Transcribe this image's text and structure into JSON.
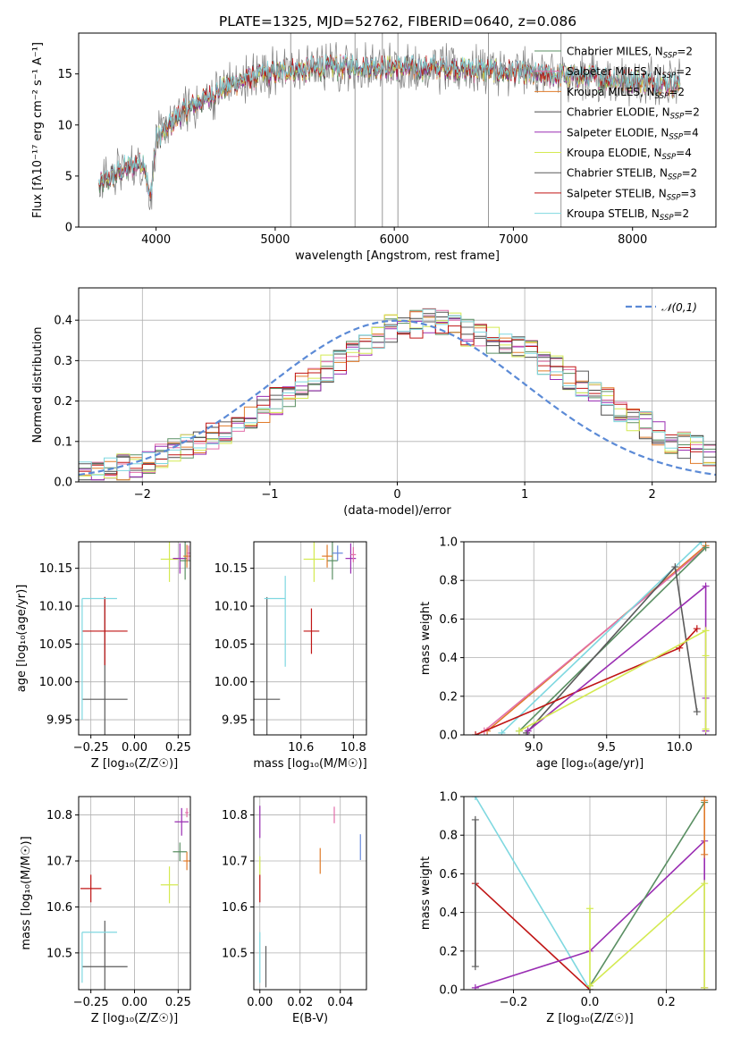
{
  "title": "PLATE=1325, MJD=52762, FIBERID=0640, z=0.086",
  "colors": {
    "Chabrier MILES": "#5a8f63",
    "Salpeter MILES": "#e26fa9",
    "Kroupa MILES": "#e07b2a",
    "Chabrier ELODIE": "#4a4a4a",
    "Salpeter ELODIE": "#9a2eb3",
    "Kroupa ELODIE": "#d4ea52",
    "Chabrier STELIB": "#5a5a5a",
    "Salpeter STELIB": "#c01515",
    "Kroupa STELIB": "#7fd8e0",
    "normal": "#5b8ad6",
    "extra": "#6688dd",
    "data": "#7f7f7f"
  },
  "chart_data": [
    {
      "id": "spectrum",
      "type": "line",
      "title": "PLATE=1325, MJD=52762, FIBERID=0640, z=0.086",
      "xlabel": "wavelength [Angstrom, rest frame]",
      "ylabel": "Flux [f_λ 10^-17 erg cm^-2 s^-1 A^-1]",
      "xlim": [
        3350,
        8700
      ],
      "ylim": [
        0,
        19
      ],
      "xticks": [
        4000,
        5000,
        6000,
        7000,
        8000
      ],
      "yticks": [
        0,
        5,
        10,
        15
      ],
      "legend_loc": "right",
      "legend": [
        "Chabrier MILES, N_SSP=2",
        "Salpeter MILES, N_SSP=2",
        "Kroupa MILES, N_SSP=2",
        "Chabrier ELODIE, N_SSP=2",
        "Salpeter ELODIE, N_SSP=4",
        "Kroupa ELODIE, N_SSP=4",
        "Chabrier STELIB, N_SSP=2",
        "Salpeter STELIB, N_SSP=3",
        "Kroupa STELIB, N_SSP=2"
      ],
      "continuum_x": [
        3500,
        3700,
        3900,
        3950,
        4000,
        4200,
        4400,
        4600,
        4800,
        5000,
        5200,
        5400,
        5600,
        5800,
        6000,
        6200,
        6400,
        6600,
        6800,
        7000,
        7200,
        7400,
        7600,
        7800,
        8000,
        8200,
        8400
      ],
      "continuum_y": [
        4.0,
        5.5,
        6.5,
        2.5,
        8.5,
        11.0,
        12.5,
        13.8,
        14.6,
        15.2,
        15.4,
        15.6,
        15.7,
        15.8,
        15.6,
        15.6,
        15.6,
        15.5,
        15.3,
        15.1,
        14.9,
        14.8,
        14.7,
        14.5,
        14.3,
        14.1,
        13.9
      ]
    },
    {
      "id": "residuals",
      "type": "line",
      "xlabel": "(data-model)/error",
      "ylabel": "Normed distribution",
      "xlim": [
        -2.5,
        2.5
      ],
      "ylim": [
        0,
        0.48
      ],
      "xticks": [
        -2,
        -1,
        0,
        1,
        2
      ],
      "yticks": [
        0.0,
        0.1,
        0.2,
        0.3,
        0.4
      ],
      "legend": [
        "𝒩(0,1)"
      ],
      "legend_loc": "upper right",
      "grid": true,
      "bins": [
        -2.5,
        -2.4,
        -2.3,
        -2.2,
        -2.1,
        -2.0,
        -1.9,
        -1.8,
        -1.7,
        -1.6,
        -1.5,
        -1.4,
        -1.3,
        -1.2,
        -1.1,
        -1.0,
        -0.9,
        -0.8,
        -0.7,
        -0.6,
        -0.5,
        -0.4,
        -0.3,
        -0.2,
        -0.1,
        0.0,
        0.1,
        0.2,
        0.3,
        0.4,
        0.5,
        0.6,
        0.7,
        0.8,
        0.9,
        1.0,
        1.1,
        1.2,
        1.3,
        1.4,
        1.5,
        1.6,
        1.7,
        1.8,
        1.9,
        2.0,
        2.1,
        2.2,
        2.3,
        2.4,
        2.5
      ],
      "histogram_base": [
        0.02,
        0.025,
        0.03,
        0.035,
        0.045,
        0.055,
        0.065,
        0.075,
        0.09,
        0.1,
        0.115,
        0.13,
        0.145,
        0.16,
        0.18,
        0.2,
        0.22,
        0.24,
        0.26,
        0.28,
        0.3,
        0.32,
        0.34,
        0.36,
        0.38,
        0.39,
        0.39,
        0.4,
        0.395,
        0.385,
        0.37,
        0.36,
        0.35,
        0.34,
        0.33,
        0.32,
        0.3,
        0.28,
        0.26,
        0.24,
        0.22,
        0.2,
        0.18,
        0.16,
        0.14,
        0.12,
        0.1,
        0.09,
        0.08,
        0.07
      ]
    },
    {
      "id": "age-vs-Z",
      "type": "scatter",
      "xlabel": "Z [log10(Z/Z☉)]",
      "ylabel": "age [log10(age/yr)]",
      "xlim": [
        -0.32,
        0.32
      ],
      "ylim": [
        9.93,
        10.185
      ],
      "xticks": [
        -0.25,
        0.0,
        0.25
      ],
      "yticks": [
        9.95,
        10.0,
        10.05,
        10.1,
        10.15
      ],
      "grid": true,
      "points": [
        {
          "model": "Chabrier STELIB",
          "x": -0.17,
          "y": 9.977,
          "xerr": 0.13,
          "yerr": 0.135
        },
        {
          "model": "Salpeter STELIB",
          "x": -0.17,
          "y": 10.067,
          "xerr": 0.13,
          "yerr": 0.045
        },
        {
          "model": "Kroupa STELIB",
          "x": -0.2,
          "y": 10.11,
          "xerr": 0.1,
          "yerr": 0.0
        },
        {
          "model": "Kroupa STELIB",
          "x": -0.3,
          "y": 10.03,
          "xerr": 0.0,
          "yerr": 0.08
        },
        {
          "model": "Kroupa ELODIE",
          "x": 0.2,
          "y": 10.162,
          "xerr": 0.05,
          "yerr": 0.03
        },
        {
          "model": "Salpeter ELODIE",
          "x": 0.26,
          "y": 10.163,
          "xerr": 0.04,
          "yerr": 0.02
        },
        {
          "model": "Chabrier MILES",
          "x": 0.29,
          "y": 10.16,
          "xerr": 0.03,
          "yerr": 0.025
        },
        {
          "model": "Kroupa MILES",
          "x": 0.3,
          "y": 10.166,
          "xerr": 0.02,
          "yerr": 0.015
        },
        {
          "model": "Salpeter MILES",
          "x": 0.31,
          "y": 10.17,
          "xerr": 0.01,
          "yerr": 0.01
        }
      ]
    },
    {
      "id": "age-vs-mass",
      "type": "scatter",
      "xlabel": "mass [log10(M/M☉)]",
      "yticks": [
        9.95,
        10.0,
        10.05,
        10.1,
        10.15
      ],
      "xlim": [
        10.42,
        10.85
      ],
      "ylim": [
        9.93,
        10.185
      ],
      "xticks": [
        10.6,
        10.8
      ],
      "grid": true,
      "points": [
        {
          "model": "Chabrier STELIB",
          "x": 10.47,
          "y": 9.977,
          "xerr": 0.05,
          "yerr": 0.135
        },
        {
          "model": "Kroupa STELIB",
          "x": 10.54,
          "y": 10.08,
          "xerr": 0.0,
          "yerr": 0.06
        },
        {
          "model": "Kroupa STELIB",
          "x": 10.5,
          "y": 10.11,
          "xerr": 0.04,
          "yerr": 0.0
        },
        {
          "model": "Salpeter STELIB",
          "x": 10.64,
          "y": 10.067,
          "xerr": 0.03,
          "yerr": 0.03
        },
        {
          "model": "Kroupa ELODIE",
          "x": 10.65,
          "y": 10.162,
          "xerr": 0.04,
          "yerr": 0.03
        },
        {
          "model": "Chabrier MILES",
          "x": 10.72,
          "y": 10.16,
          "xerr": 0.02,
          "yerr": 0.025
        },
        {
          "model": "Kroupa MILES",
          "x": 10.7,
          "y": 10.166,
          "xerr": 0.02,
          "yerr": 0.015
        },
        {
          "model": "Salpeter ELODIE",
          "x": 10.79,
          "y": 10.163,
          "xerr": 0.02,
          "yerr": 0.02
        },
        {
          "model": "Salpeter MILES",
          "x": 10.8,
          "y": 10.168,
          "xerr": 0.01,
          "yerr": 0.01
        },
        {
          "model": "extra",
          "x": 10.74,
          "y": 10.17,
          "xerr": 0.02,
          "yerr": 0.01
        }
      ]
    },
    {
      "id": "massweight-vs-age",
      "type": "line",
      "xlabel": "age [log10(age/yr)]",
      "ylabel": "mass weight",
      "xlim": [
        8.52,
        10.25
      ],
      "ylim": [
        0,
        1.0
      ],
      "xticks": [
        9.0,
        9.5,
        10.0
      ],
      "yticks": [
        0.0,
        0.2,
        0.4,
        0.6,
        0.8,
        1.0
      ],
      "grid": true,
      "series": [
        {
          "model": "Kroupa MILES",
          "x": [
            8.68,
            10.18
          ],
          "y": [
            0.02,
            0.98
          ]
        },
        {
          "model": "Salpeter MILES",
          "x": [
            8.66,
            10.18
          ],
          "y": [
            0.02,
            0.97
          ]
        },
        {
          "model": "Chabrier MILES",
          "x": [
            8.9,
            10.18
          ],
          "y": [
            0.02,
            0.97
          ]
        },
        {
          "model": "Kroupa STELIB",
          "x": [
            8.78,
            10.15
          ],
          "y": [
            0.01,
            1.0
          ]
        },
        {
          "model": "Chabrier STELIB",
          "x": [
            8.95,
            9.97,
            10.12
          ],
          "y": [
            0.01,
            0.87,
            0.12
          ]
        },
        {
          "model": "Salpeter STELIB",
          "x": [
            8.6,
            10.0,
            10.12
          ],
          "y": [
            0.0,
            0.45,
            0.55
          ]
        },
        {
          "model": "Salpeter ELODIE",
          "x": [
            8.96,
            10.18,
            10.18,
            10.18
          ],
          "y": [
            0.02,
            0.77,
            0.19,
            0.02
          ]
        },
        {
          "model": "Kroupa ELODIE",
          "x": [
            8.9,
            10.18,
            10.18,
            10.18
          ],
          "y": [
            0.02,
            0.54,
            0.41,
            0.03
          ]
        }
      ]
    },
    {
      "id": "mass-vs-Z",
      "type": "scatter",
      "xlabel": "Z [log10(Z/Z☉)]",
      "ylabel": "mass [log10(M/M☉)]",
      "xlim": [
        -0.32,
        0.32
      ],
      "ylim": [
        10.42,
        10.84
      ],
      "xticks": [
        -0.25,
        0.0,
        0.25
      ],
      "yticks": [
        10.5,
        10.6,
        10.7,
        10.8
      ],
      "grid": true,
      "points": [
        {
          "model": "Chabrier STELIB",
          "x": -0.17,
          "y": 10.47,
          "xerr": 0.13,
          "yerr": 0.1
        },
        {
          "model": "Kroupa STELIB",
          "x": -0.2,
          "y": 10.545,
          "xerr": 0.1,
          "yerr": 0.0
        },
        {
          "model": "Kroupa STELIB",
          "x": -0.3,
          "y": 10.49,
          "xerr": 0.0,
          "yerr": 0.055
        },
        {
          "model": "Salpeter STELIB",
          "x": -0.25,
          "y": 10.64,
          "xerr": 0.06,
          "yerr": 0.03
        },
        {
          "model": "Kroupa ELODIE",
          "x": 0.2,
          "y": 10.648,
          "xerr": 0.05,
          "yerr": 0.04
        },
        {
          "model": "Chabrier MILES",
          "x": 0.26,
          "y": 10.72,
          "xerr": 0.04,
          "yerr": 0.02
        },
        {
          "model": "Salpeter ELODIE",
          "x": 0.27,
          "y": 10.785,
          "xerr": 0.04,
          "yerr": 0.03
        },
        {
          "model": "Kroupa MILES",
          "x": 0.3,
          "y": 10.7,
          "xerr": 0.02,
          "yerr": 0.02
        },
        {
          "model": "Salpeter MILES",
          "x": 0.3,
          "y": 10.805,
          "xerr": 0.01,
          "yerr": 0.01
        }
      ]
    },
    {
      "id": "mass-vs-EBV",
      "type": "scatter",
      "xlabel": "E(B-V)",
      "xlim": [
        -0.003,
        0.053
      ],
      "ylim": [
        10.42,
        10.84
      ],
      "xticks": [
        0.0,
        0.02,
        0.04
      ],
      "yticks": [
        10.5,
        10.6,
        10.7,
        10.8
      ],
      "grid": true,
      "points": [
        {
          "model": "Chabrier STELIB",
          "x": 0.003,
          "y": 10.47,
          "yerr": 0.045
        },
        {
          "model": "Kroupa STELIB",
          "x": 0.0,
          "y": 10.49,
          "yerr": 0.055
        },
        {
          "model": "Salpeter STELIB",
          "x": 0.0,
          "y": 10.64,
          "yerr": 0.03
        },
        {
          "model": "Kroupa ELODIE",
          "x": 0.0,
          "y": 10.69,
          "yerr": 0.02
        },
        {
          "model": "Salpeter ELODIE",
          "x": 0.0,
          "y": 10.785,
          "yerr": 0.035
        },
        {
          "model": "Kroupa MILES",
          "x": 0.03,
          "y": 10.7,
          "yerr": 0.028
        },
        {
          "model": "Salpeter MILES",
          "x": 0.037,
          "y": 10.8,
          "yerr": 0.018
        },
        {
          "model": "extra",
          "x": 0.05,
          "y": 10.73,
          "yerr": 0.028
        }
      ]
    },
    {
      "id": "massweight-vs-Z",
      "type": "line",
      "xlabel": "Z [log10(Z/Z☉)]",
      "ylabel": "mass weight",
      "xlim": [
        -0.33,
        0.33
      ],
      "ylim": [
        0,
        1.0
      ],
      "xticks": [
        -0.2,
        0.0,
        0.2
      ],
      "yticks": [
        0.0,
        0.2,
        0.4,
        0.6,
        0.8,
        1.0
      ],
      "grid": true,
      "series": [
        {
          "model": "Kroupa STELIB",
          "x": [
            -0.3,
            0.0
          ],
          "y": [
            1.0,
            0.0
          ]
        },
        {
          "model": "Salpeter STELIB",
          "x": [
            -0.3,
            0.0
          ],
          "y": [
            0.55,
            0.0
          ]
        },
        {
          "model": "Chabrier STELIB",
          "x": [
            -0.3,
            -0.3
          ],
          "y": [
            0.12,
            0.88
          ]
        },
        {
          "model": "Salpeter ELODIE",
          "x": [
            -0.3,
            0.0,
            0.3,
            0.3
          ],
          "y": [
            0.01,
            0.2,
            0.77,
            0.01
          ]
        },
        {
          "model": "Chabrier MILES",
          "x": [
            0.0,
            0.3
          ],
          "y": [
            0.02,
            0.97
          ]
        },
        {
          "model": "Kroupa MILES",
          "x": [
            0.3,
            0.3
          ],
          "y": [
            0.7,
            0.98
          ]
        },
        {
          "model": "Kroupa ELODIE",
          "x": [
            0.0,
            0.0,
            0.3,
            0.3
          ],
          "y": [
            0.42,
            0.02,
            0.55,
            0.01
          ]
        }
      ]
    }
  ]
}
